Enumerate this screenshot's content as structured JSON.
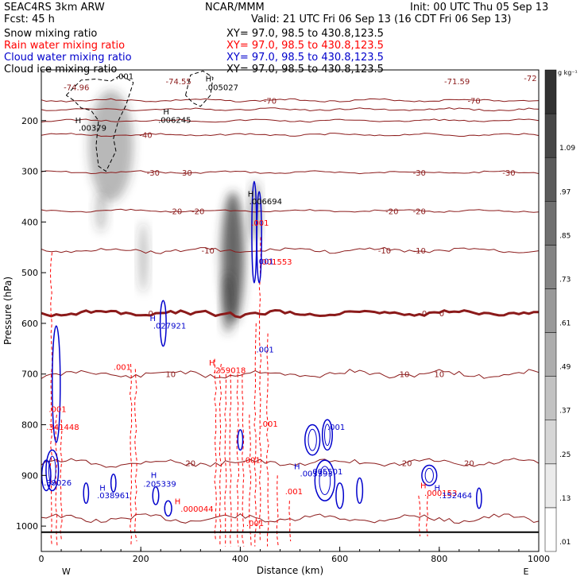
{
  "header": {
    "model": "SEAC4RS  3km ARW",
    "org": "NCAR/MMM",
    "init": "Init: 00 UTC Thu 05 Sep 13",
    "fcst": "Fcst:   45 h",
    "valid": "Valid: 21 UTC Fri 06 Sep 13 (16 CDT Fri 06 Sep 13)",
    "fields": [
      {
        "label": "Snow mixing ratio",
        "xy": "XY=  97.0, 98.5 to 430.8,123.5",
        "color": "#000000"
      },
      {
        "label": "Rain water mixing ratio",
        "xy": "XY=  97.0, 98.5 to 430.8,123.5",
        "color": "#ff0000"
      },
      {
        "label": "Cloud water mixing ratio",
        "xy": "XY=  97.0, 98.5 to 430.8,123.5",
        "color": "#0000cc"
      },
      {
        "label": "Cloud ice mixing ratio",
        "xy": "XY=  97.0, 98.5 to 430.8,123.5",
        "color": "#000000"
      }
    ]
  },
  "chart_data": {
    "type": "cross-section",
    "xlabel": "Distance (km)",
    "ylabel": "Pressure (hPa)",
    "xlim": [
      0,
      1000
    ],
    "ylim": [
      1050,
      100
    ],
    "x_ticks": [
      0,
      200,
      400,
      600,
      800,
      1000
    ],
    "y_ticks": [
      200,
      300,
      400,
      500,
      600,
      700,
      800,
      900,
      1000
    ],
    "x_end_labels": {
      "left": "W",
      "right": "E"
    },
    "temperature_color": "#8b1a1a",
    "temperature_contours": [
      {
        "t": -70,
        "p": 160,
        "labels": [
          [
            460,
            "-70"
          ],
          [
            870,
            "-70"
          ]
        ]
      },
      {
        "t": -60,
        "p": 178,
        "labels": []
      },
      {
        "t": -50,
        "p": 200,
        "labels": []
      },
      {
        "t": -40,
        "p": 228,
        "labels": [
          [
            210,
            "-40"
          ]
        ]
      },
      {
        "t": -30,
        "p": 302,
        "labels": [
          [
            225,
            "-30"
          ],
          [
            290,
            "-30"
          ],
          [
            760,
            "-30"
          ],
          [
            940,
            "-30"
          ]
        ]
      },
      {
        "t": -20,
        "p": 378,
        "labels": [
          [
            270,
            "-20"
          ],
          [
            315,
            "-20"
          ],
          [
            705,
            "-20"
          ],
          [
            760,
            "-20"
          ]
        ]
      },
      {
        "t": -10,
        "p": 456,
        "labels": [
          [
            335,
            "-10"
          ],
          [
            690,
            "-10"
          ],
          [
            760,
            "-10"
          ]
        ]
      },
      {
        "t": 0,
        "p": 580,
        "labels": [
          [
            220,
            "0"
          ],
          [
            770,
            "0"
          ],
          [
            805,
            "0"
          ]
        ],
        "bold": true
      },
      {
        "t": 10,
        "p": 700,
        "labels": [
          [
            260,
            "10"
          ],
          [
            730,
            "10"
          ],
          [
            800,
            "10"
          ]
        ]
      },
      {
        "t": 20,
        "p": 875,
        "labels": [
          [
            300,
            "20"
          ],
          [
            735,
            "20"
          ],
          [
            860,
            "20"
          ]
        ]
      },
      {
        "t": 30,
        "p": 985,
        "labels": []
      }
    ],
    "temperature_extrema": [
      {
        "x": 45,
        "p": 140,
        "label": "-74.96"
      },
      {
        "x": 250,
        "p": 128,
        "label": "-74.55"
      },
      {
        "x": 810,
        "p": 128,
        "label": "-71.59"
      },
      {
        "x": 970,
        "p": 122,
        "label": "-72"
      }
    ],
    "snow_blobs": [
      {
        "x": 140,
        "p": 250,
        "w": 90,
        "h": 220,
        "a": 0.35
      },
      {
        "x": 120,
        "p": 380,
        "w": 25,
        "h": 80,
        "a": 0.25
      },
      {
        "x": 205,
        "p": 470,
        "w": 18,
        "h": 140,
        "a": 0.3
      },
      {
        "x": 385,
        "p": 470,
        "w": 45,
        "h": 260,
        "a": 0.75
      },
      {
        "x": 375,
        "p": 560,
        "w": 22,
        "h": 120,
        "a": 0.6
      },
      {
        "x": 430,
        "p": 380,
        "w": 20,
        "h": 120,
        "a": 0.5
      }
    ],
    "ice_contour": [
      [
        50,
        150
      ],
      [
        80,
        120
      ],
      [
        110,
        118
      ],
      [
        140,
        122
      ],
      [
        160,
        110
      ],
      [
        185,
        125
      ],
      [
        170,
        170
      ],
      [
        155,
        200
      ],
      [
        145,
        235
      ],
      [
        150,
        260
      ],
      [
        130,
        300
      ],
      [
        115,
        290
      ],
      [
        110,
        250
      ],
      [
        115,
        200
      ],
      [
        100,
        180
      ],
      [
        80,
        175
      ],
      [
        65,
        160
      ],
      [
        50,
        150
      ]
    ],
    "ice_contour2": [
      [
        290,
        150
      ],
      [
        300,
        110
      ],
      [
        325,
        102
      ],
      [
        345,
        115
      ],
      [
        340,
        150
      ],
      [
        320,
        172
      ],
      [
        305,
        165
      ],
      [
        290,
        150
      ]
    ],
    "labels_black": [
      {
        "x": 150,
        "p": 118,
        "text": ".001"
      },
      {
        "x": 68,
        "p": 205,
        "text": "H"
      },
      {
        "x": 75,
        "p": 220,
        "text": ".00379"
      },
      {
        "x": 245,
        "p": 188,
        "text": "H"
      },
      {
        "x": 235,
        "p": 204,
        "text": ".006245"
      },
      {
        "x": 330,
        "p": 123,
        "text": "H"
      },
      {
        "x": 330,
        "p": 140,
        "text": ".005027"
      },
      {
        "x": 415,
        "p": 350,
        "text": "H"
      },
      {
        "x": 418,
        "p": 365,
        "text": ".006694"
      }
    ],
    "labels_red": [
      {
        "x": 15,
        "p": 775,
        "text": ".001"
      },
      {
        "x": 10,
        "p": 810,
        "text": ".341448"
      },
      {
        "x": 145,
        "p": 692,
        "text": ".001"
      },
      {
        "x": 337,
        "p": 683,
        "text": "H"
      },
      {
        "x": 345,
        "p": 698,
        "text": ".259018"
      },
      {
        "x": 440,
        "p": 804,
        "text": ".001"
      },
      {
        "x": 405,
        "p": 875,
        "text": ".001"
      },
      {
        "x": 490,
        "p": 937,
        "text": ".001"
      },
      {
        "x": 422,
        "p": 407,
        "text": ".001"
      },
      {
        "x": 438,
        "p": 484,
        "text": ".001553"
      },
      {
        "x": 268,
        "p": 957,
        "text": "H"
      },
      {
        "x": 280,
        "p": 972,
        "text": ".000044"
      },
      {
        "x": 412,
        "p": 1000,
        "text": ".001"
      },
      {
        "x": 762,
        "p": 925,
        "text": "H"
      },
      {
        "x": 770,
        "p": 940,
        "text": ".000153"
      }
    ],
    "labels_blue": [
      {
        "x": 218,
        "p": 595,
        "text": "H"
      },
      {
        "x": 225,
        "p": 610,
        "text": ".027921"
      },
      {
        "x": 432,
        "p": 483,
        "text": ".001"
      },
      {
        "x": 432,
        "p": 657,
        "text": ".001"
      },
      {
        "x": 575,
        "p": 810,
        "text": ".001"
      },
      {
        "x": 508,
        "p": 888,
        "text": "H"
      },
      {
        "x": 520,
        "p": 902,
        "text": ".003393"
      },
      {
        "x": 540,
        "p": 898,
        "text": ".005501"
      },
      {
        "x": 5,
        "p": 920,
        "text": ".39026"
      },
      {
        "x": 117,
        "p": 930,
        "text": "H"
      },
      {
        "x": 112,
        "p": 945,
        "text": ".038961"
      },
      {
        "x": 220,
        "p": 905,
        "text": "H"
      },
      {
        "x": 205,
        "p": 922,
        "text": ".205339"
      },
      {
        "x": 790,
        "p": 930,
        "text": "H"
      },
      {
        "x": 800,
        "p": 945,
        "text": ".152464"
      }
    ],
    "rain_lines": [
      [
        20,
        460,
        1045
      ],
      [
        30,
        780,
        1040
      ],
      [
        40,
        790,
        1045
      ],
      [
        180,
        680,
        1040
      ],
      [
        190,
        690,
        1040
      ],
      [
        350,
        670,
        1040
      ],
      [
        360,
        680,
        1040
      ],
      [
        370,
        700,
        1040
      ],
      [
        380,
        700,
        1040
      ],
      [
        395,
        700,
        1040
      ],
      [
        405,
        700,
        1040
      ],
      [
        420,
        780,
        1040
      ],
      [
        430,
        600,
        1040
      ],
      [
        440,
        430,
        1040
      ],
      [
        455,
        620,
        1040
      ],
      [
        475,
        900,
        1040
      ],
      [
        500,
        950,
        1040
      ],
      [
        760,
        940,
        1020
      ],
      [
        775,
        940,
        1020
      ]
    ],
    "cloud_blobs": [
      {
        "x": 30,
        "p": 720,
        "w": 16,
        "h": 230
      },
      {
        "x": 22,
        "p": 890,
        "w": 25,
        "h": 80
      },
      {
        "x": 10,
        "p": 900,
        "w": 18,
        "h": 60
      },
      {
        "x": 145,
        "p": 915,
        "w": 10,
        "h": 35
      },
      {
        "x": 90,
        "p": 935,
        "w": 10,
        "h": 40
      },
      {
        "x": 255,
        "p": 965,
        "w": 14,
        "h": 30
      },
      {
        "x": 230,
        "p": 940,
        "w": 12,
        "h": 35
      },
      {
        "x": 245,
        "p": 600,
        "w": 12,
        "h": 90
      },
      {
        "x": 428,
        "p": 420,
        "w": 8,
        "h": 200
      },
      {
        "x": 438,
        "p": 430,
        "w": 8,
        "h": 180
      },
      {
        "x": 545,
        "p": 830,
        "w": 30,
        "h": 60
      },
      {
        "x": 575,
        "p": 820,
        "w": 20,
        "h": 60
      },
      {
        "x": 570,
        "p": 910,
        "w": 40,
        "h": 80
      },
      {
        "x": 600,
        "p": 940,
        "w": 15,
        "h": 50
      },
      {
        "x": 640,
        "p": 930,
        "w": 12,
        "h": 50
      },
      {
        "x": 780,
        "p": 900,
        "w": 30,
        "h": 40
      },
      {
        "x": 880,
        "p": 945,
        "w": 10,
        "h": 40
      },
      {
        "x": 400,
        "p": 830,
        "w": 10,
        "h": 40
      }
    ],
    "colorbar": {
      "unit": "g kg⁻¹",
      "levels": [
        ".01",
        ".13",
        ".25",
        ".37",
        ".49",
        ".61",
        ".73",
        ".85",
        ".97",
        "1.09"
      ],
      "min": 0,
      "max": 1.2
    }
  }
}
